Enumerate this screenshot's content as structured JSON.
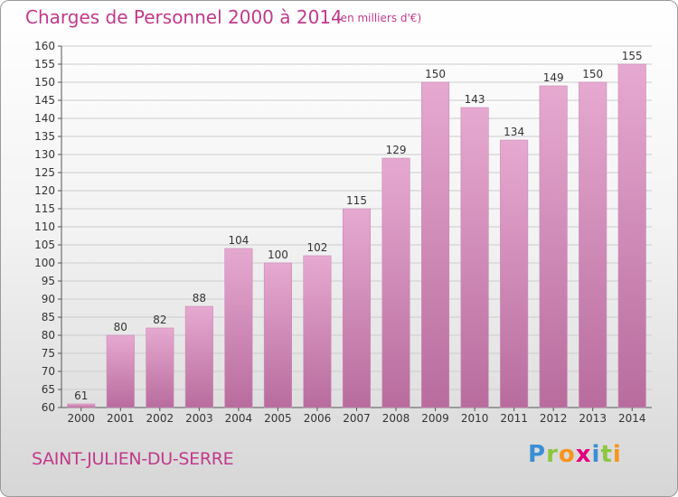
{
  "title": "Charges de Personnel 2000 à 2014",
  "subtitle": "(en milliers d'€)",
  "town": "SAINT-JULIEN-DU-SERRE",
  "logo": {
    "text": "Proxiti",
    "letters": [
      {
        "char": "P",
        "color": "#3a8fd6"
      },
      {
        "char": "r",
        "color": "#8cc63f"
      },
      {
        "char": "o",
        "color": "#f7941d"
      },
      {
        "char": "x",
        "color": "#e4007c"
      },
      {
        "char": "i",
        "color": "#3a8fd6"
      },
      {
        "char": "t",
        "color": "#8cc63f"
      },
      {
        "char": "i",
        "color": "#f7941d"
      }
    ]
  },
  "colors": {
    "bar_top": "#e6a9d0",
    "bar_bottom": "#b86c9e",
    "title": "#c13a8a",
    "grid": "#cccccc"
  },
  "chart_data": {
    "type": "bar",
    "categories": [
      "2000",
      "2001",
      "2002",
      "2003",
      "2004",
      "2005",
      "2006",
      "2007",
      "2008",
      "2009",
      "2010",
      "2011",
      "2012",
      "2013",
      "2014"
    ],
    "values": [
      61,
      80,
      82,
      88,
      104,
      100,
      102,
      115,
      129,
      150,
      143,
      134,
      149,
      150,
      155
    ],
    "ylim": [
      60,
      160
    ],
    "yticks": [
      60,
      65,
      70,
      75,
      80,
      85,
      90,
      95,
      100,
      105,
      110,
      115,
      120,
      125,
      130,
      135,
      140,
      145,
      150,
      155,
      160
    ],
    "grid": true,
    "xlabel": "",
    "ylabel": ""
  }
}
